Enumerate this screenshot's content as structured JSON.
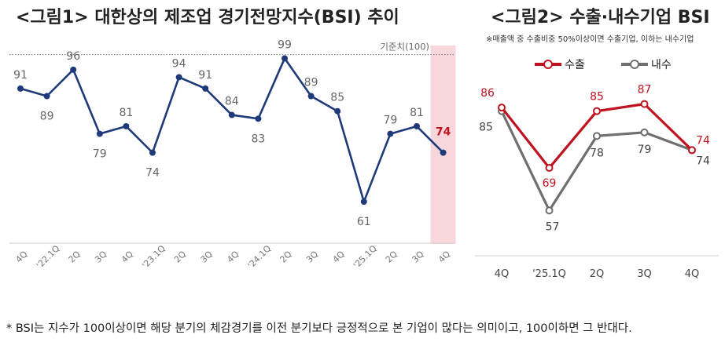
{
  "titles": {
    "left": "<그림1> 대한상의 제조업 경기전망지수(BSI) 추이",
    "right": "<그림2> 수출·내수기업 BSI"
  },
  "right_note": "※매출액 중 수출비중 50%이상이면 수출기업, 이하는 내수기업",
  "footnote": "* BSI는 지수가 100이상이면 해당 분기의 체감경기를 이전 분기보다 긍정적으로 본 기업이 많다는 의미이고, 100이하면 그 반대다.",
  "colors": {
    "navy": "#1f3a7a",
    "red": "#c1121f",
    "gray": "#6f6f6f",
    "highlight": "#f7d7dc",
    "label": "#666666"
  },
  "chart_data": [
    {
      "type": "line",
      "title": "<그림1> 대한상의 제조업 경기전망지수(BSI) 추이",
      "categories": [
        "4Q",
        "'22.1Q",
        "2Q",
        "3Q",
        "4Q",
        "'23.1Q",
        "2Q",
        "3Q",
        "4Q",
        "'24.1Q",
        "2Q",
        "3Q",
        "4Q",
        "'25.1Q",
        "2Q",
        "3Q",
        "4Q"
      ],
      "series": [
        {
          "values": [
            91,
            89,
            96,
            79,
            81,
            74,
            94,
            91,
            84,
            83,
            99,
            89,
            85,
            61,
            79,
            81,
            74
          ]
        }
      ],
      "reference_line": {
        "value": 100,
        "label": "기준치(100)"
      },
      "highlight_category": "4Q",
      "ylim": [
        50,
        102
      ],
      "grid": false
    },
    {
      "type": "line",
      "title": "<그림2> 수출·내수기업 BSI",
      "categories": [
        "4Q",
        "'25.1Q",
        "2Q",
        "3Q",
        "4Q"
      ],
      "series": [
        {
          "name": "수출",
          "values": [
            86,
            69,
            85,
            87,
            74
          ]
        },
        {
          "name": "내수",
          "values": [
            85,
            57,
            78,
            79,
            74
          ]
        }
      ],
      "ylim": [
        50,
        92
      ],
      "legend": "top",
      "grid": false
    }
  ]
}
